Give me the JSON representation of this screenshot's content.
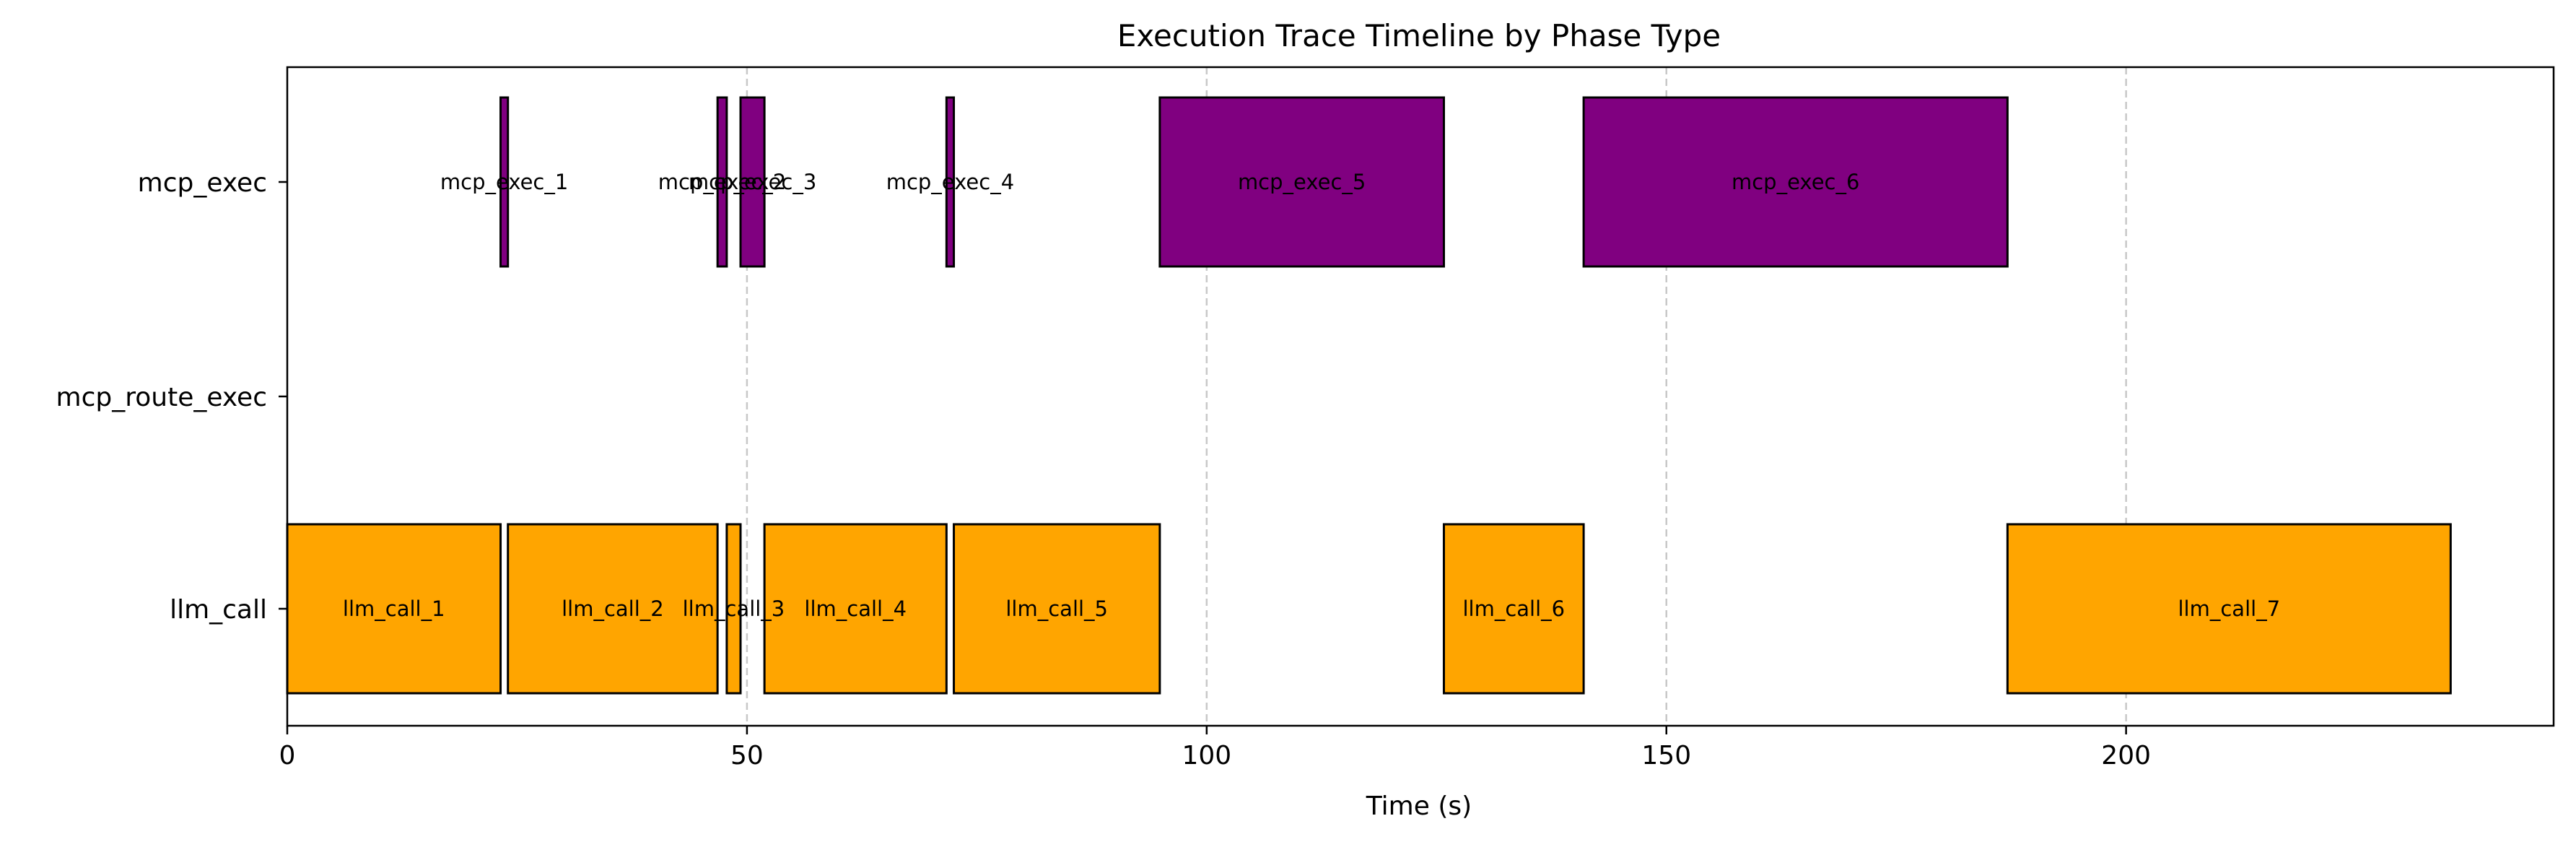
{
  "chart_data": {
    "type": "gantt",
    "title": "Execution Trace Timeline by Phase Type",
    "xlabel": "Time (s)",
    "ylabel": "",
    "xlim": [
      0,
      246.5
    ],
    "xticks": [
      0,
      50,
      100,
      150,
      200
    ],
    "xgrid": true,
    "categories": [
      "mcp_exec",
      "mcp_route_exec",
      "llm_call"
    ],
    "colors": {
      "mcp_exec": "#800080",
      "llm_call": "#ffa500"
    },
    "segments": [
      {
        "category": "llm_call",
        "label": "llm_call_1",
        "start": 0,
        "end": 23.2
      },
      {
        "category": "mcp_exec",
        "label": "mcp_exec_1",
        "start": 23.2,
        "end": 24.0
      },
      {
        "category": "llm_call",
        "label": "llm_call_2",
        "start": 24.0,
        "end": 46.8
      },
      {
        "category": "mcp_exec",
        "label": "mcp_exec_2",
        "start": 46.8,
        "end": 47.8
      },
      {
        "category": "llm_call",
        "label": "llm_call_3",
        "start": 47.8,
        "end": 49.3
      },
      {
        "category": "mcp_exec",
        "label": "mcp_exec_3",
        "start": 49.3,
        "end": 51.9
      },
      {
        "category": "llm_call",
        "label": "llm_call_4",
        "start": 51.9,
        "end": 71.7
      },
      {
        "category": "mcp_exec",
        "label": "mcp_exec_4",
        "start": 71.7,
        "end": 72.5
      },
      {
        "category": "llm_call",
        "label": "llm_call_5",
        "start": 72.5,
        "end": 94.9
      },
      {
        "category": "mcp_exec",
        "label": "mcp_exec_5",
        "start": 94.9,
        "end": 125.8
      },
      {
        "category": "llm_call",
        "label": "llm_call_6",
        "start": 125.8,
        "end": 141.0
      },
      {
        "category": "mcp_exec",
        "label": "mcp_exec_6",
        "start": 141.0,
        "end": 187.1
      },
      {
        "category": "llm_call",
        "label": "llm_call_7",
        "start": 187.1,
        "end": 235.3
      }
    ]
  }
}
